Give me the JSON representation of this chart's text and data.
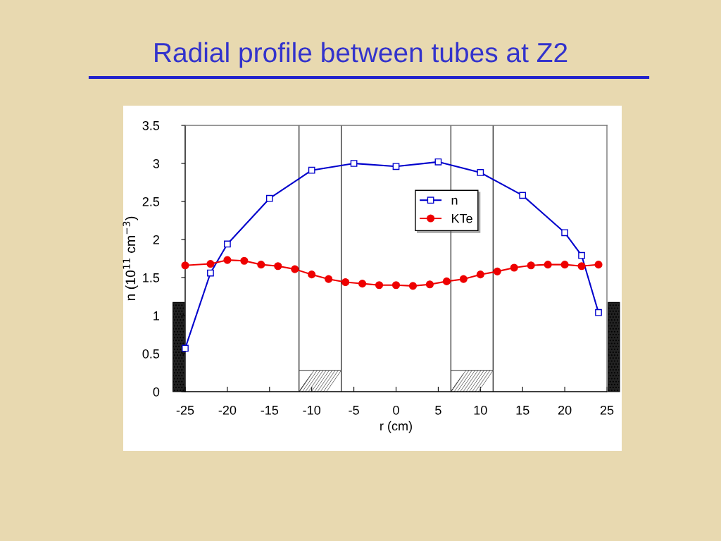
{
  "chart_data": {
    "type": "line",
    "title": "Radial profile between tubes at Z2",
    "xlabel": "r (cm)",
    "ylabel": "n (10$^{11}$ cm$^{−3}$)",
    "xlim": [
      -25,
      25
    ],
    "xticks": [
      -25,
      -20,
      -15,
      -10,
      -5,
      0,
      5,
      10,
      15,
      20,
      25
    ],
    "ylim": [
      0,
      3.5
    ],
    "yticks": [
      0,
      0.5,
      1,
      1.5,
      2,
      2.5,
      3,
      3.5
    ],
    "grid": false,
    "legend": "top center",
    "line_style": "solid",
    "series": [
      {
        "name": "n",
        "color": "#0000cc",
        "marker": "square",
        "x": [
          -25,
          -22,
          -20,
          -15,
          -10,
          -5,
          0,
          5,
          10,
          15,
          20,
          22,
          24
        ],
        "values": [
          0.57,
          1.56,
          1.94,
          2.54,
          2.91,
          3.0,
          2.96,
          3.02,
          2.88,
          2.58,
          2.09,
          1.79,
          1.04
        ]
      },
      {
        "name": "KTe",
        "color": "#ee0000",
        "marker": "circle",
        "x": [
          -25,
          -22,
          -20,
          -18,
          -16,
          -14,
          -12,
          -10,
          -8,
          -6,
          -4,
          -2,
          0,
          2,
          4,
          6,
          8,
          10,
          12,
          14,
          16,
          18,
          20,
          22,
          24
        ],
        "values": [
          1.66,
          1.68,
          1.73,
          1.72,
          1.67,
          1.65,
          1.61,
          1.54,
          1.48,
          1.44,
          1.42,
          1.4,
          1.4,
          1.39,
          1.41,
          1.45,
          1.48,
          1.54,
          1.58,
          1.63,
          1.66,
          1.67,
          1.67,
          1.65,
          1.67
        ]
      }
    ],
    "ref_lines": [
      {
        "axis": "x",
        "value": -11.5,
        "color": "#000000"
      },
      {
        "axis": "x",
        "value": -6.5,
        "color": "#000000"
      },
      {
        "axis": "x",
        "value": 6.5,
        "color": "#000000"
      },
      {
        "axis": "x",
        "value": 11.5,
        "color": "#000000"
      }
    ]
  }
}
